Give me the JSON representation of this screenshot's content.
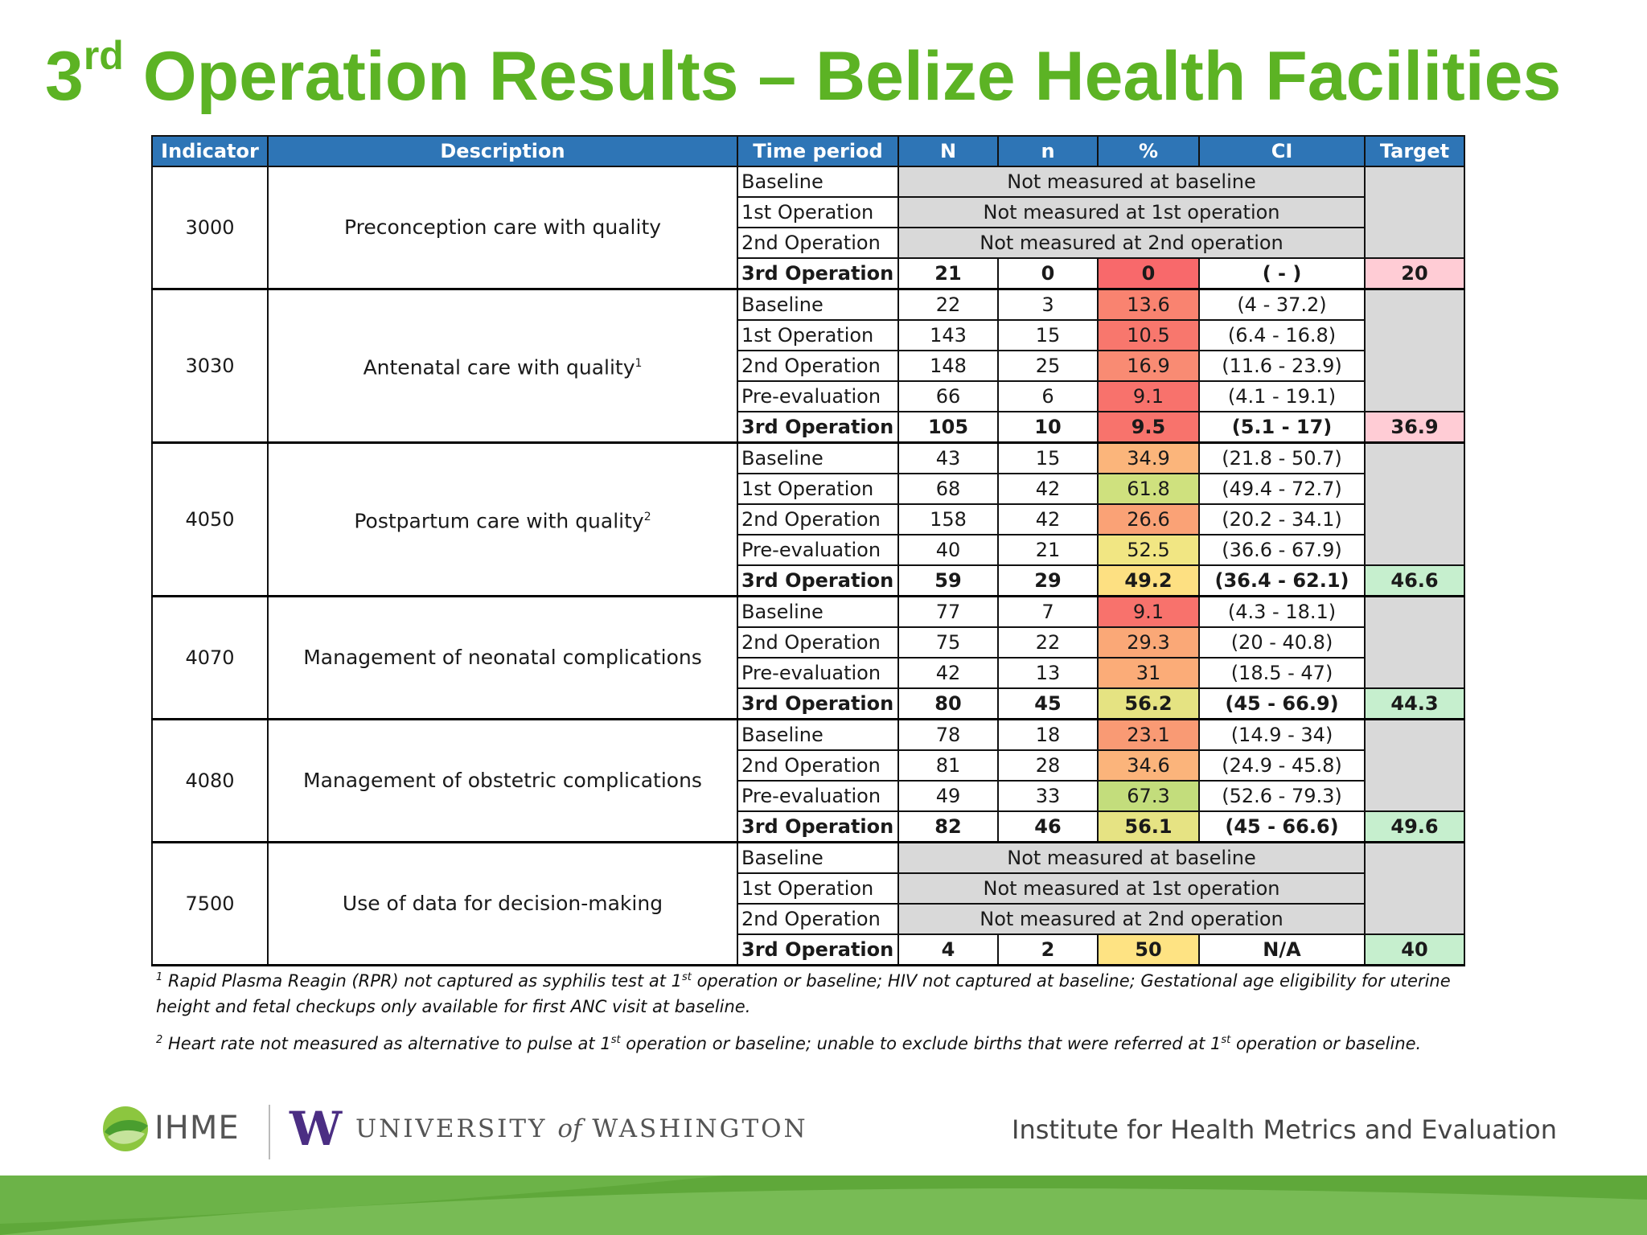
{
  "title": {
    "prefix": "3",
    "sup": "rd",
    "rest": " Operation Results – Belize Health Facilities"
  },
  "colors": {
    "title_green": "#5cb324",
    "header_blue": "#2e75b6",
    "not_measured_gray": "#d9d9d9",
    "target_pink": "#ffccd5",
    "target_green": "#c6efce"
  },
  "table": {
    "headers": [
      "Indicator",
      "Description",
      "Time period",
      "N",
      "n",
      "%",
      "CI",
      "Target"
    ],
    "groups": [
      {
        "indicator": "3000",
        "description": "Preconception care with quality",
        "footnote": "",
        "target": "20",
        "target_color": "#ffccd5",
        "rows": [
          {
            "period": "Baseline",
            "not_measured": "Not measured at baseline"
          },
          {
            "period": "1st Operation",
            "not_measured": "Not measured at 1st operation"
          },
          {
            "period": "2nd Operation",
            "not_measured": "Not measured at 2nd operation"
          },
          {
            "period": "3rd Operation",
            "N": "21",
            "n": "0",
            "pct": "0",
            "ci": "( - )",
            "color": "#f8696b"
          }
        ]
      },
      {
        "indicator": "3030",
        "description": "Antenatal care with quality",
        "footnote": "1",
        "target": "36.9",
        "target_color": "#ffccd5",
        "rows": [
          {
            "period": "Baseline",
            "N": "22",
            "n": "3",
            "pct": "13.6",
            "ci": "(4 - 37.2)",
            "color": "#f98370"
          },
          {
            "period": "1st Operation",
            "N": "143",
            "n": "15",
            "pct": "10.5",
            "ci": "(6.4 - 16.8)",
            "color": "#f8776d"
          },
          {
            "period": "2nd Operation",
            "N": "148",
            "n": "25",
            "pct": "16.9",
            "ci": "(11.6 - 23.9)",
            "color": "#f98b73"
          },
          {
            "period": "Pre-evaluation",
            "N": "66",
            "n": "6",
            "pct": "9.1",
            "ci": "(4.1 - 19.1)",
            "color": "#f8726c"
          },
          {
            "period": "3rd Operation",
            "N": "105",
            "n": "10",
            "pct": "9.5",
            "ci": "(5.1 - 17)",
            "color": "#f8736c"
          }
        ]
      },
      {
        "indicator": "4050",
        "description": "Postpartum care with quality",
        "footnote": "2",
        "target": "46.6",
        "target_color": "#c6efce",
        "rows": [
          {
            "period": "Baseline",
            "N": "43",
            "n": "15",
            "pct": "34.9",
            "ci": "(21.8 - 50.7)",
            "color": "#fbb57b"
          },
          {
            "period": "1st Operation",
            "N": "68",
            "n": "42",
            "pct": "61.8",
            "ci": "(49.4 - 72.7)",
            "color": "#cfe17e"
          },
          {
            "period": "2nd Operation",
            "N": "158",
            "n": "42",
            "pct": "26.6",
            "ci": "(20.2 - 34.1)",
            "color": "#faa276"
          },
          {
            "period": "Pre-evaluation",
            "N": "40",
            "n": "21",
            "pct": "52.5",
            "ci": "(36.6 - 67.9)",
            "color": "#f1e683"
          },
          {
            "period": "3rd Operation",
            "N": "59",
            "n": "29",
            "pct": "49.2",
            "ci": "(36.4 - 62.1)",
            "color": "#fde082"
          }
        ]
      },
      {
        "indicator": "4070",
        "description": "Management of neonatal complications",
        "footnote": "",
        "target": "44.3",
        "target_color": "#c6efce",
        "rows": [
          {
            "period": "Baseline",
            "N": "77",
            "n": "7",
            "pct": "9.1",
            "ci": "(4.3 - 18.1)",
            "color": "#f8726c"
          },
          {
            "period": "2nd Operation",
            "N": "75",
            "n": "22",
            "pct": "29.3",
            "ci": "(20 - 40.8)",
            "color": "#faa877"
          },
          {
            "period": "Pre-evaluation",
            "N": "42",
            "n": "13",
            "pct": "31",
            "ci": "(18.5 - 47)",
            "color": "#fbac78"
          },
          {
            "period": "3rd Operation",
            "N": "80",
            "n": "45",
            "pct": "56.2",
            "ci": "(45 - 66.9)",
            "color": "#e5e382"
          }
        ]
      },
      {
        "indicator": "4080",
        "description": "Management of obstetric complications",
        "footnote": "",
        "target": "49.6",
        "target_color": "#c6efce",
        "rows": [
          {
            "period": "Baseline",
            "N": "78",
            "n": "18",
            "pct": "23.1",
            "ci": "(14.9 - 34)",
            "color": "#f99a74"
          },
          {
            "period": "2nd Operation",
            "N": "81",
            "n": "28",
            "pct": "34.6",
            "ci": "(24.9 - 45.8)",
            "color": "#fbb47b"
          },
          {
            "period": "Pre-evaluation",
            "N": "49",
            "n": "33",
            "pct": "67.3",
            "ci": "(52.6 - 79.3)",
            "color": "#c3dd7c"
          },
          {
            "period": "3rd Operation",
            "N": "82",
            "n": "46",
            "pct": "56.1",
            "ci": "(45 - 66.6)",
            "color": "#e6e383"
          }
        ]
      },
      {
        "indicator": "7500",
        "description": "Use of data for decision-making",
        "footnote": "",
        "target": "40",
        "target_color": "#c6efce",
        "rows": [
          {
            "period": "Baseline",
            "not_measured": "Not measured at baseline"
          },
          {
            "period": "1st Operation",
            "not_measured": "Not measured at 1st operation"
          },
          {
            "period": "2nd Operation",
            "not_measured": "Not measured at 2nd operation"
          },
          {
            "period": "3rd Operation",
            "N": "4",
            "n": "2",
            "pct": "50",
            "ci": "N/A",
            "color": "#fee383"
          }
        ]
      }
    ]
  },
  "footnotes": [
    {
      "num": "1",
      "parts": [
        "Rapid Plasma Reagin (RPR) not captured as syphilis test at 1",
        "st",
        " operation or baseline; HIV not captured at baseline; Gestational age eligibility for uterine height and fetal checkups only available for first ANC visit at baseline."
      ]
    },
    {
      "num": "2",
      "parts": [
        "Heart rate not measured as alternative to pulse at 1",
        "st",
        " operation or baseline; unable to exclude births that were referred at 1",
        "st",
        " operation or baseline."
      ]
    }
  ],
  "footer": {
    "ihme_logo_text": "IHME",
    "uw_mark": "W",
    "uw_text_1": "UNIVERSITY ",
    "uw_text_of": "of",
    "uw_text_2": " WASHINGTON",
    "institute": "Institute for Health Metrics and Evaluation"
  }
}
